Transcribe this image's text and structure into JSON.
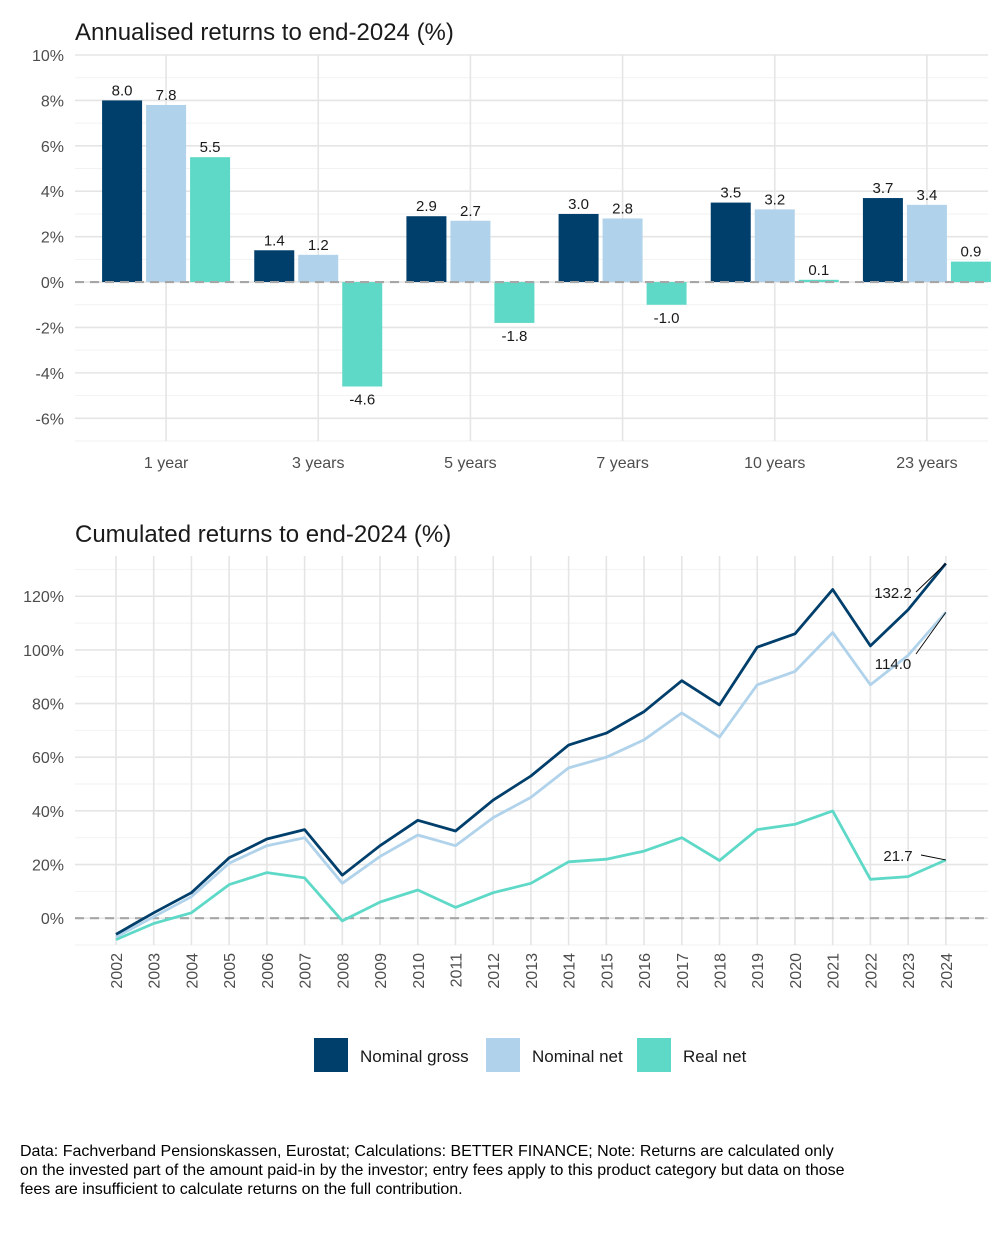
{
  "colors": {
    "nominal_gross": "#003f6b",
    "nominal_net": "#b0d3eb",
    "real_net": "#5fd9c7"
  },
  "chart_data": [
    {
      "type": "bar",
      "title": "Annualised returns to end-2024 (%)",
      "categories": [
        "1 year",
        "3 years",
        "5 years",
        "7 years",
        "10 years",
        "23 years"
      ],
      "series": [
        {
          "name": "Nominal gross",
          "values": [
            8.0,
            1.4,
            2.9,
            3.0,
            3.5,
            3.7
          ]
        },
        {
          "name": "Nominal net",
          "values": [
            7.8,
            1.2,
            2.7,
            2.8,
            3.2,
            3.4
          ]
        },
        {
          "name": "Real net",
          "values": [
            5.5,
            -4.6,
            -1.8,
            -1.0,
            0.1,
            0.9
          ]
        }
      ],
      "ylim": [
        -7,
        10
      ],
      "yticks": [
        -6,
        -4,
        -2,
        0,
        2,
        4,
        6,
        8,
        10
      ],
      "ytick_labels": [
        "-6%",
        "-4%",
        "-2%",
        "0%",
        "2%",
        "4%",
        "6%",
        "8%",
        "10%"
      ],
      "data_labels": [
        [
          "8.0",
          "1.4",
          "2.9",
          "3.0",
          "3.5",
          "3.7"
        ],
        [
          "7.8",
          "1.2",
          "2.7",
          "2.8",
          "3.2",
          "3.4"
        ],
        [
          "5.5",
          "-4.6",
          "-1.8",
          "-1.0",
          "0.1",
          "0.9"
        ]
      ],
      "xlabel": "",
      "ylabel": "",
      "grid": true
    },
    {
      "type": "line",
      "title": "Cumulated returns to end-2024 (%)",
      "x": [
        "2002",
        "2003",
        "2004",
        "2005",
        "2006",
        "2007",
        "2008",
        "2009",
        "2010",
        "2011",
        "2012",
        "2013",
        "2014",
        "2015",
        "2016",
        "2017",
        "2018",
        "2019",
        "2020",
        "2021",
        "2022",
        "2023",
        "2024"
      ],
      "series": [
        {
          "name": "Nominal gross",
          "values": [
            -6,
            2,
            9.5,
            22.5,
            29.5,
            33,
            16,
            27,
            36.5,
            32.5,
            44,
            53,
            64.5,
            69,
            77,
            88.5,
            79.5,
            101,
            106,
            122.5,
            101.5,
            115,
            132.2
          ]
        },
        {
          "name": "Nominal net",
          "values": [
            -7,
            0.5,
            8,
            20.5,
            27,
            30,
            13,
            23,
            31,
            27,
            37.5,
            45,
            56,
            60,
            66.5,
            76.5,
            67.5,
            87,
            92,
            106.5,
            87,
            98,
            114.0
          ]
        },
        {
          "name": "Real net",
          "values": [
            -8,
            -2,
            2,
            12.5,
            17,
            15,
            -1,
            6,
            10.5,
            4,
            9.5,
            13,
            21,
            22,
            25,
            30,
            21.5,
            33,
            35,
            40,
            14.5,
            15.5,
            21.7
          ]
        }
      ],
      "end_labels": [
        "132.2",
        "114.0",
        "21.7"
      ],
      "ylim": [
        -10,
        135
      ],
      "yticks": [
        0,
        20,
        40,
        60,
        80,
        100,
        120
      ],
      "ytick_labels": [
        "0%",
        "20%",
        "40%",
        "60%",
        "80%",
        "100%",
        "120%"
      ],
      "xlabel": "",
      "ylabel": "",
      "grid": true
    }
  ],
  "legend": [
    {
      "label": "Nominal gross"
    },
    {
      "label": "Nominal net"
    },
    {
      "label": "Real net"
    }
  ],
  "note": "Data: Fachverband Pensionskassen, Eurostat; Calculations: BETTER FINANCE; Note: Returns are calculated only on the invested part of the amount paid-in by the investor; entry fees apply to this product category but data on those fees are insufficient to calculate returns on the full contribution."
}
